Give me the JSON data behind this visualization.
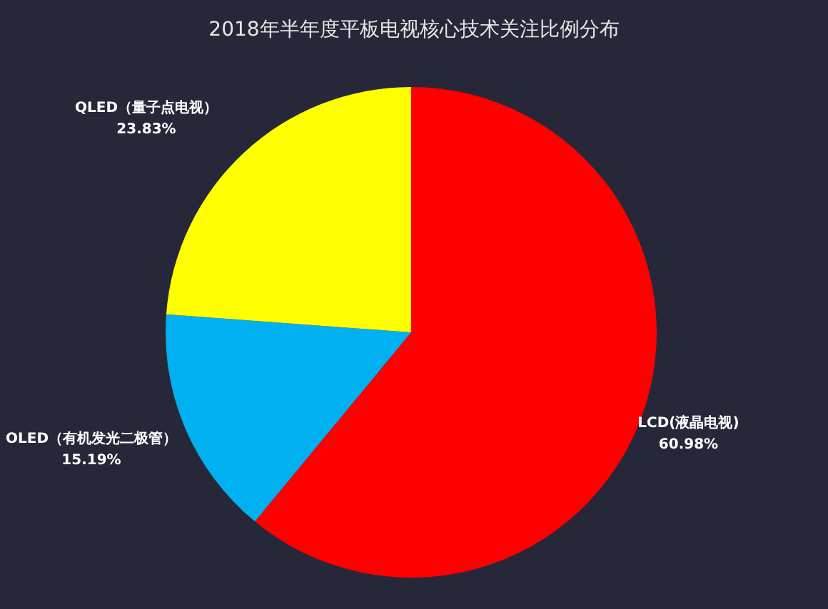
{
  "chart_data": {
    "type": "pie",
    "title": "2018年半年度平板电视核心技术关注比例分布",
    "categories": [
      "LCD(液晶电视)",
      "OLED（有机发光二极管）",
      "QLED（量子点电视）"
    ],
    "values": [
      60.98,
      15.19,
      23.83
    ],
    "colors": [
      "#ff0000",
      "#00b0f0",
      "#ffff00"
    ],
    "value_labels": [
      "60.98%",
      "15.19%",
      "23.83%"
    ],
    "legend": false
  }
}
